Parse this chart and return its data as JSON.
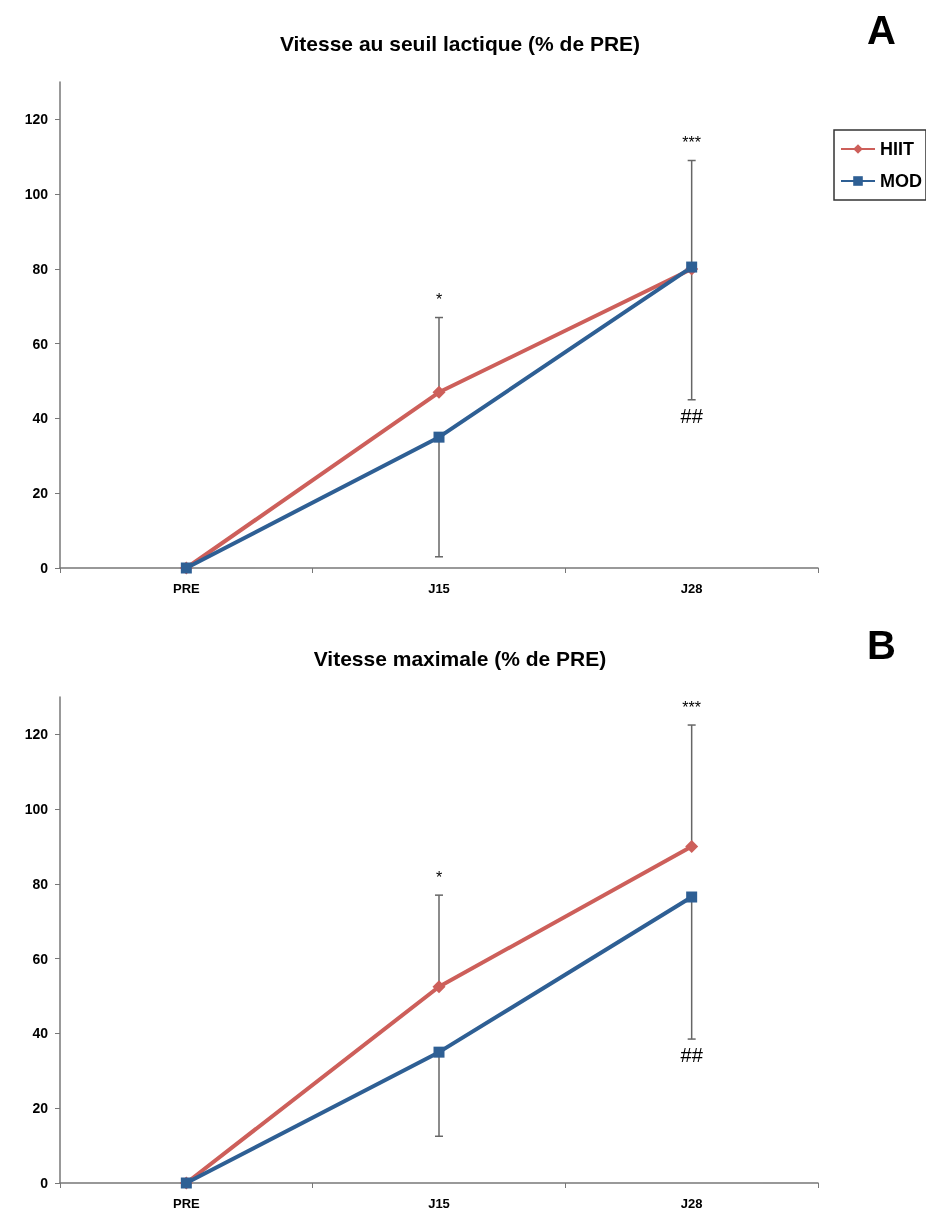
{
  "chart_data": [
    {
      "type": "line",
      "title": "Vitesse au seuil lactique (% de PRE)",
      "categories": [
        "PRE",
        "J15",
        "J28"
      ],
      "ylim": [
        0,
        130
      ],
      "yticks": [
        0,
        20,
        40,
        60,
        80,
        100,
        120
      ],
      "grid": false,
      "legend": "top right",
      "series": [
        {
          "name": "HIIT",
          "color": "#cd5f5a",
          "marker": "diamond",
          "values": [
            0,
            47,
            80
          ],
          "errors": [
            null,
            [
              47,
              67
            ],
            [
              80,
              109
            ]
          ]
        },
        {
          "name": "MOD",
          "color": "#2e5f94",
          "marker": "square",
          "values": [
            0,
            35,
            80.5
          ],
          "errors": [
            null,
            [
              3,
              35
            ],
            [
              45,
              80.5
            ]
          ]
        }
      ],
      "annotations": [
        "A",
        "*",
        "***",
        "##"
      ]
    },
    {
      "type": "line",
      "title": "Vitesse maximale (% de PRE)",
      "categories": [
        "PRE",
        "J15",
        "J28"
      ],
      "ylim": [
        0,
        130
      ],
      "yticks": [
        0,
        20,
        40,
        60,
        80,
        100,
        120
      ],
      "grid": false,
      "legend": false,
      "series": [
        {
          "color": "#cd5f5a",
          "marker": "diamond",
          "values": [
            0,
            52.5,
            90
          ],
          "errors": [
            null,
            [
              52.5,
              77
            ],
            [
              90,
              122.5
            ]
          ]
        },
        {
          "color": "#2e5f94",
          "marker": "square",
          "values": [
            0,
            35,
            76.5
          ],
          "errors": [
            null,
            [
              12.5,
              35
            ],
            [
              38.5,
              76.5
            ]
          ]
        }
      ],
      "annotations": [
        "B",
        "*",
        "***",
        "##"
      ]
    }
  ]
}
